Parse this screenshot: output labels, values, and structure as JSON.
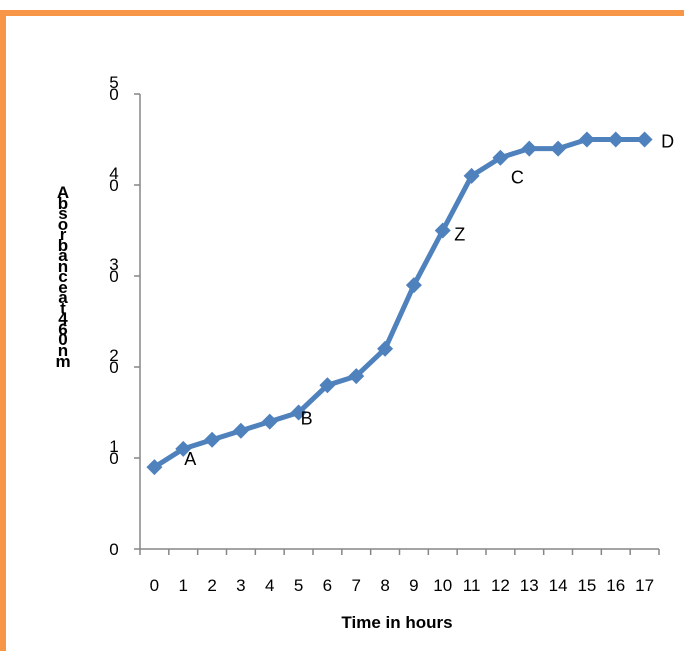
{
  "chart_data": {
    "type": "line",
    "title": "",
    "xlabel": "Time in hours",
    "ylabel": "Absorbance at 460nm",
    "x": [
      0,
      1,
      2,
      3,
      4,
      5,
      6,
      7,
      8,
      9,
      10,
      11,
      12,
      13,
      14,
      15,
      16,
      17
    ],
    "x_tick_labels": [
      "0",
      "1",
      "2",
      "3",
      "4",
      "5",
      "6",
      "7",
      "8",
      "9",
      "10",
      "11",
      "12",
      "13",
      "14",
      "15",
      "16",
      "17"
    ],
    "y_tick_labels": [
      {
        "value": 0,
        "lines": [
          "0"
        ]
      },
      {
        "value": 10,
        "lines": [
          "1",
          "0"
        ]
      },
      {
        "value": 20,
        "lines": [
          "2",
          "0"
        ]
      },
      {
        "value": 30,
        "lines": [
          "3",
          "0"
        ]
      },
      {
        "value": 40,
        "lines": [
          "4",
          "0"
        ]
      },
      {
        "value": 50,
        "lines": [
          "5",
          "0"
        ]
      }
    ],
    "ylim": [
      0,
      50
    ],
    "series": [
      {
        "values": [
          9,
          11,
          12,
          13,
          14,
          15,
          18,
          19,
          22,
          29,
          35,
          41,
          43,
          44,
          44,
          45,
          45,
          45
        ]
      }
    ],
    "annotations": [
      {
        "text": "A",
        "x": 1,
        "y": 11
      },
      {
        "text": "B",
        "x": 5,
        "y": 15
      },
      {
        "text": "Z",
        "x": 10,
        "y": 35
      },
      {
        "text": "C",
        "x": 12,
        "y": 43
      },
      {
        "text": "D",
        "x": 17,
        "y": 45
      }
    ],
    "grid": false,
    "legend": "none"
  },
  "colors": {
    "frame": "#F79646",
    "series": "#4F81BD",
    "axis": "#868686",
    "text": "#000000"
  }
}
